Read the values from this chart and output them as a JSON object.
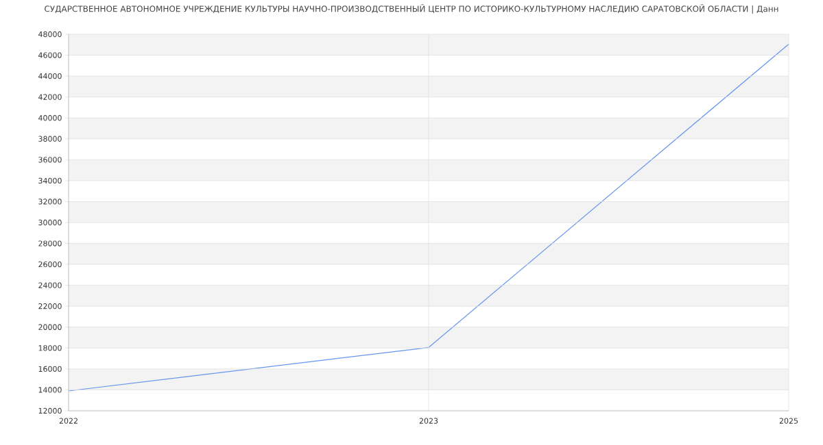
{
  "chart_data": {
    "type": "line",
    "title": "СУДАРСТВЕННОЕ АВТОНОМНОЕ УЧРЕЖДЕНИЕ КУЛЬТУРЫ НАУЧНО-ПРОИЗВОДСТВЕННЫЙ ЦЕНТР ПО ИСТОРИКО-КУЛЬТУРНОМУ НАСЛЕДИЮ САРАТОВСКОЙ ОБЛАСТИ | Данн",
    "categories": [
      "2022",
      "2023",
      "2025"
    ],
    "series": [
      {
        "color": "#6495ed",
        "values": [
          13900,
          18050,
          47050
        ]
      }
    ],
    "ylim": [
      12000,
      48000
    ],
    "yticks": [
      12000,
      14000,
      16000,
      18000,
      20000,
      22000,
      24000,
      26000,
      28000,
      30000,
      32000,
      34000,
      36000,
      38000,
      40000,
      42000,
      44000,
      46000,
      48000
    ],
    "grid": true,
    "line_style": "solid"
  }
}
